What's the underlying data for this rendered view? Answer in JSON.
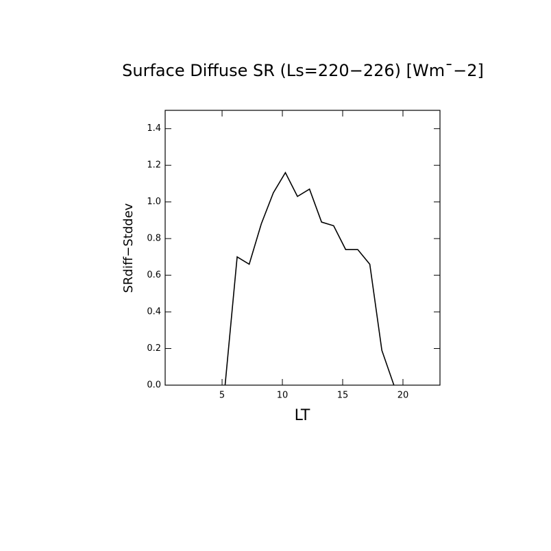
{
  "chart_data": {
    "type": "line",
    "title": "Surface Diffuse SR (Ls=220−226) [Wm¯−2]",
    "x_label": "LT",
    "y_label": "SRdiff−Stddev",
    "x": [
      5.25,
      6.25,
      7.25,
      8.25,
      9.25,
      10.25,
      11.25,
      12.25,
      13.25,
      14.25,
      15.25,
      16.25,
      17.25,
      18.25,
      19.25
    ],
    "series": [
      {
        "name": "SRdiff",
        "color": "#000000",
        "values": [
          0.0,
          0.7,
          0.66,
          0.88,
          1.05,
          1.16,
          1.03,
          1.07,
          0.89,
          0.87,
          0.74,
          0.74,
          0.66,
          0.19,
          0.0
        ]
      }
    ],
    "xlim": [
      0.28,
      23.07
    ],
    "xticks": [
      5,
      10,
      15,
      20
    ],
    "ylim": [
      0,
      1.5
    ],
    "yticks": [
      {
        "value": 0,
        "label": "0.0"
      },
      0.2,
      0.4,
      0.6,
      0.8,
      {
        "value": 1,
        "label": "1.0"
      },
      1.2,
      1.4
    ]
  }
}
